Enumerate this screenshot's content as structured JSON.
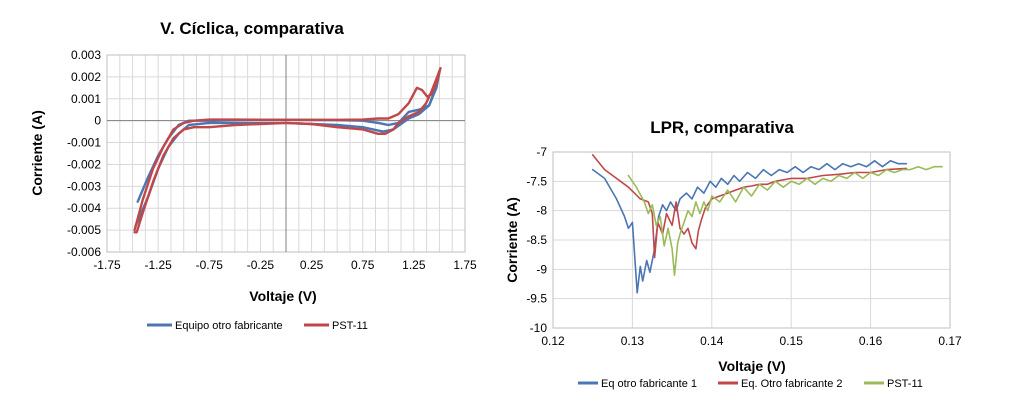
{
  "chart_data": [
    {
      "type": "line",
      "title": "V. Cíclica, comparativa",
      "xlabel": "Voltaje (V)",
      "ylabel": "Corriente (A)",
      "xlim": [
        -1.75,
        1.75
      ],
      "ylim": [
        -0.006,
        0.003
      ],
      "xticks": [
        -1.75,
        -1.25,
        -0.75,
        -0.25,
        0.25,
        0.75,
        1.25,
        1.75
      ],
      "xtick_labels": [
        "-1.75",
        "-1.25",
        "-0.75",
        "-0.25",
        "0.25",
        "0.75",
        "1.25",
        "1.75"
      ],
      "yticks": [
        0.003,
        0.002,
        0.001,
        0,
        -0.001,
        -0.002,
        -0.003,
        -0.004,
        -0.005,
        -0.006
      ],
      "ytick_labels": [
        "0.003",
        "0.002",
        "0.001",
        "0",
        "-0.001",
        "-0.002",
        "-0.003",
        "-0.004",
        "-0.005",
        "-0.006"
      ],
      "grid": true,
      "legend_position": "bottom",
      "series": [
        {
          "name": "Equipo otro fabricante",
          "color": "#4a76b2",
          "points": [
            [
              -1.45,
              -0.0037
            ],
            [
              -1.35,
              -0.0026
            ],
            [
              -1.25,
              -0.0016
            ],
            [
              -1.15,
              -0.0008
            ],
            [
              -1.05,
              -0.0002
            ],
            [
              -0.95,
              0.0
            ],
            [
              -0.75,
              0.0
            ],
            [
              -0.5,
              3e-05
            ],
            [
              -0.25,
              4e-05
            ],
            [
              0.0,
              4e-05
            ],
            [
              0.25,
              3e-05
            ],
            [
              0.5,
              2e-05
            ],
            [
              0.75,
              0.0
            ],
            [
              0.9,
              -0.0001
            ],
            [
              1.0,
              -0.0002
            ],
            [
              1.1,
              -0.0001
            ],
            [
              1.2,
              0.0004
            ],
            [
              1.3,
              0.0005
            ],
            [
              1.4,
              0.0007
            ],
            [
              1.47,
              0.0015
            ],
            [
              1.5,
              0.0022
            ],
            [
              1.47,
              0.0016
            ],
            [
              1.4,
              0.0007
            ],
            [
              1.3,
              0.0003
            ],
            [
              1.2,
              0.0001
            ],
            [
              1.05,
              -0.0004
            ],
            [
              0.95,
              -0.0005
            ],
            [
              0.75,
              -0.0003
            ],
            [
              0.5,
              -0.0002
            ],
            [
              0.25,
              -0.00015
            ],
            [
              0.0,
              -0.0001
            ],
            [
              -0.25,
              -0.0001
            ],
            [
              -0.5,
              -0.0001
            ],
            [
              -0.75,
              -0.0001
            ],
            [
              -0.95,
              -0.0002
            ],
            [
              -1.05,
              -0.0006
            ],
            [
              -1.15,
              -0.0012
            ],
            [
              -1.25,
              -0.0022
            ],
            [
              -1.35,
              -0.0035
            ],
            [
              -1.45,
              -0.0046
            ],
            [
              -1.47,
              -0.0048
            ]
          ]
        },
        {
          "name": "PST-11",
          "color": "#c0484b",
          "points": [
            [
              -1.48,
              -0.005
            ],
            [
              -1.4,
              -0.0036
            ],
            [
              -1.3,
              -0.0022
            ],
            [
              -1.2,
              -0.0012
            ],
            [
              -1.1,
              -0.0004
            ],
            [
              -1.0,
              -0.0001
            ],
            [
              -0.9,
              0.0
            ],
            [
              -0.75,
              5e-05
            ],
            [
              -0.5,
              5e-05
            ],
            [
              -0.25,
              4e-05
            ],
            [
              0.0,
              4e-05
            ],
            [
              0.25,
              4e-05
            ],
            [
              0.5,
              4e-05
            ],
            [
              0.75,
              5e-05
            ],
            [
              0.9,
              0.0001
            ],
            [
              1.0,
              0.0001
            ],
            [
              1.1,
              0.0003
            ],
            [
              1.2,
              0.0008
            ],
            [
              1.28,
              0.0015
            ],
            [
              1.33,
              0.0014
            ],
            [
              1.38,
              0.0011
            ],
            [
              1.42,
              0.0012
            ],
            [
              1.47,
              0.0017
            ],
            [
              1.51,
              0.0024
            ],
            [
              1.47,
              0.0019
            ],
            [
              1.42,
              0.0013
            ],
            [
              1.37,
              0.0008
            ],
            [
              1.3,
              0.0004
            ],
            [
              1.2,
              0.0002
            ],
            [
              1.1,
              -0.0001
            ],
            [
              1.05,
              -0.0004
            ],
            [
              0.97,
              -0.0006
            ],
            [
              0.9,
              -0.0006
            ],
            [
              0.75,
              -0.0004
            ],
            [
              0.5,
              -0.0003
            ],
            [
              0.25,
              -0.00015
            ],
            [
              0.0,
              -0.0001
            ],
            [
              -0.25,
              -0.00015
            ],
            [
              -0.5,
              -0.0002
            ],
            [
              -0.75,
              -0.0003
            ],
            [
              -0.9,
              -0.0003
            ],
            [
              -1.0,
              -0.0004
            ],
            [
              -1.1,
              -0.0008
            ],
            [
              -1.2,
              -0.0016
            ],
            [
              -1.3,
              -0.0028
            ],
            [
              -1.4,
              -0.0042
            ],
            [
              -1.46,
              -0.0051
            ],
            [
              -1.48,
              -0.0051
            ]
          ]
        }
      ]
    },
    {
      "type": "line",
      "title": "LPR, comparativa",
      "xlabel": "Voltaje (V)",
      "ylabel": "Corriente (A)",
      "xlim": [
        0.12,
        0.17
      ],
      "ylim": [
        -10,
        -7
      ],
      "xticks": [
        0.12,
        0.13,
        0.14,
        0.15,
        0.16,
        0.17
      ],
      "xtick_labels": [
        "0.12",
        "0.13",
        "0.14",
        "0.15",
        "0.16",
        "0.17"
      ],
      "yticks": [
        -7,
        -7.5,
        -8,
        -8.5,
        -9,
        -9.5,
        -10
      ],
      "ytick_labels": [
        "-7",
        "-7.5",
        "-8",
        "-8.5",
        "-9",
        "-9.5",
        "-10"
      ],
      "grid": true,
      "legend_position": "bottom",
      "series": [
        {
          "name": "Eq otro fabricante 1",
          "color": "#4a76b2",
          "points": [
            [
              0.125,
              -7.3
            ],
            [
              0.1265,
              -7.45
            ],
            [
              0.128,
              -7.8
            ],
            [
              0.129,
              -8.1
            ],
            [
              0.1295,
              -8.3
            ],
            [
              0.13,
              -8.2
            ],
            [
              0.1303,
              -8.8
            ],
            [
              0.1306,
              -9.4
            ],
            [
              0.131,
              -8.95
            ],
            [
              0.1313,
              -9.2
            ],
            [
              0.1318,
              -8.85
            ],
            [
              0.1322,
              -9.05
            ],
            [
              0.1328,
              -8.65
            ],
            [
              0.1333,
              -8.1
            ],
            [
              0.1338,
              -7.9
            ],
            [
              0.1343,
              -8.0
            ],
            [
              0.1348,
              -7.85
            ],
            [
              0.1355,
              -8.0
            ],
            [
              0.136,
              -7.8
            ],
            [
              0.1368,
              -7.7
            ],
            [
              0.1375,
              -7.8
            ],
            [
              0.1382,
              -7.6
            ],
            [
              0.139,
              -7.7
            ],
            [
              0.1398,
              -7.5
            ],
            [
              0.1405,
              -7.6
            ],
            [
              0.1412,
              -7.45
            ],
            [
              0.142,
              -7.55
            ],
            [
              0.1428,
              -7.4
            ],
            [
              0.1435,
              -7.5
            ],
            [
              0.1445,
              -7.35
            ],
            [
              0.1455,
              -7.45
            ],
            [
              0.1465,
              -7.3
            ],
            [
              0.1475,
              -7.4
            ],
            [
              0.1485,
              -7.3
            ],
            [
              0.1495,
              -7.35
            ],
            [
              0.1505,
              -7.25
            ],
            [
              0.1515,
              -7.35
            ],
            [
              0.1525,
              -7.25
            ],
            [
              0.1535,
              -7.3
            ],
            [
              0.1545,
              -7.2
            ],
            [
              0.1555,
              -7.3
            ],
            [
              0.1565,
              -7.2
            ],
            [
              0.1575,
              -7.25
            ],
            [
              0.1585,
              -7.2
            ],
            [
              0.1595,
              -7.25
            ],
            [
              0.1605,
              -7.15
            ],
            [
              0.1615,
              -7.25
            ],
            [
              0.1625,
              -7.15
            ],
            [
              0.1635,
              -7.2
            ],
            [
              0.1645,
              -7.2
            ]
          ]
        },
        {
          "name": "Eq. Otro fabricante 2",
          "color": "#c0484b",
          "points": [
            [
              0.125,
              -7.05
            ],
            [
              0.1265,
              -7.3
            ],
            [
              0.128,
              -7.45
            ],
            [
              0.1295,
              -7.6
            ],
            [
              0.131,
              -7.8
            ],
            [
              0.132,
              -7.85
            ],
            [
              0.1325,
              -8.05
            ],
            [
              0.1328,
              -8.8
            ],
            [
              0.1332,
              -8.2
            ],
            [
              0.1338,
              -8.4
            ],
            [
              0.1343,
              -8.05
            ],
            [
              0.135,
              -8.25
            ],
            [
              0.1355,
              -7.85
            ],
            [
              0.136,
              -8.3
            ],
            [
              0.1365,
              -8.4
            ],
            [
              0.137,
              -8.3
            ],
            [
              0.1375,
              -8.55
            ],
            [
              0.138,
              -8.65
            ],
            [
              0.1383,
              -8.35
            ],
            [
              0.1387,
              -8.15
            ],
            [
              0.1392,
              -7.95
            ],
            [
              0.14,
              -7.8
            ],
            [
              0.141,
              -7.75
            ],
            [
              0.142,
              -7.7
            ],
            [
              0.143,
              -7.65
            ],
            [
              0.144,
              -7.6
            ],
            [
              0.145,
              -7.58
            ],
            [
              0.146,
              -7.55
            ],
            [
              0.147,
              -7.55
            ],
            [
              0.148,
              -7.5
            ],
            [
              0.15,
              -7.45
            ],
            [
              0.152,
              -7.45
            ],
            [
              0.154,
              -7.4
            ],
            [
              0.156,
              -7.38
            ],
            [
              0.158,
              -7.35
            ],
            [
              0.16,
              -7.35
            ],
            [
              0.162,
              -7.3
            ],
            [
              0.1645,
              -7.28
            ]
          ]
        },
        {
          "name": "PST-11",
          "color": "#9bbb59",
          "points": [
            [
              0.1295,
              -7.4
            ],
            [
              0.1305,
              -7.6
            ],
            [
              0.1315,
              -7.85
            ],
            [
              0.132,
              -8.05
            ],
            [
              0.1325,
              -7.9
            ],
            [
              0.133,
              -8.25
            ],
            [
              0.1335,
              -8.1
            ],
            [
              0.134,
              -8.6
            ],
            [
              0.1345,
              -8.3
            ],
            [
              0.135,
              -8.65
            ],
            [
              0.1353,
              -9.1
            ],
            [
              0.1357,
              -8.55
            ],
            [
              0.136,
              -8.4
            ],
            [
              0.1365,
              -8.2
            ],
            [
              0.137,
              -8.0
            ],
            [
              0.1375,
              -8.1
            ],
            [
              0.138,
              -7.85
            ],
            [
              0.1385,
              -8.05
            ],
            [
              0.139,
              -7.85
            ],
            [
              0.1395,
              -8.0
            ],
            [
              0.14,
              -7.75
            ],
            [
              0.141,
              -7.85
            ],
            [
              0.142,
              -7.65
            ],
            [
              0.143,
              -7.85
            ],
            [
              0.144,
              -7.6
            ],
            [
              0.145,
              -7.75
            ],
            [
              0.146,
              -7.55
            ],
            [
              0.147,
              -7.65
            ],
            [
              0.148,
              -7.5
            ],
            [
              0.149,
              -7.6
            ],
            [
              0.15,
              -7.5
            ],
            [
              0.151,
              -7.55
            ],
            [
              0.152,
              -7.45
            ],
            [
              0.153,
              -7.55
            ],
            [
              0.154,
              -7.45
            ],
            [
              0.155,
              -7.5
            ],
            [
              0.156,
              -7.4
            ],
            [
              0.157,
              -7.45
            ],
            [
              0.158,
              -7.35
            ],
            [
              0.159,
              -7.45
            ],
            [
              0.16,
              -7.35
            ],
            [
              0.161,
              -7.4
            ],
            [
              0.162,
              -7.3
            ],
            [
              0.163,
              -7.35
            ],
            [
              0.164,
              -7.3
            ],
            [
              0.165,
              -7.3
            ],
            [
              0.166,
              -7.25
            ],
            [
              0.167,
              -7.3
            ],
            [
              0.168,
              -7.25
            ],
            [
              0.169,
              -7.25
            ]
          ]
        }
      ]
    }
  ]
}
